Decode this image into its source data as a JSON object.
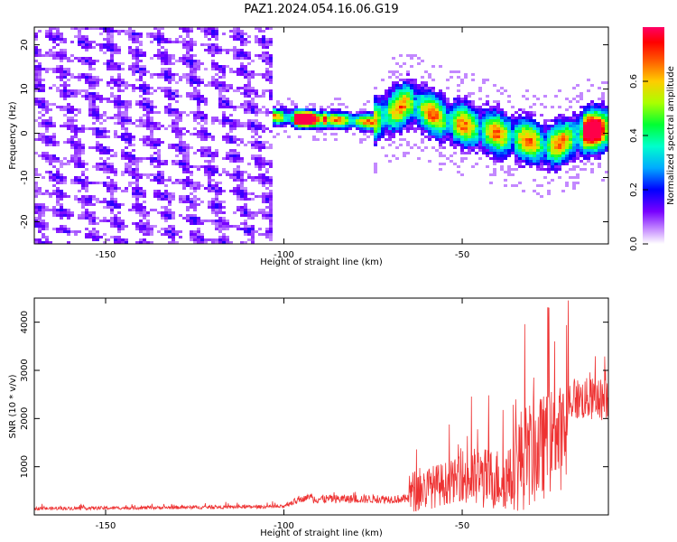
{
  "figure": {
    "title": "PAZ1.2024.054.16.06.G19"
  },
  "chart_data": [
    {
      "type": "heatmap",
      "xlabel": "Height of straight line (km)",
      "ylabel": "Frequency (Hz)",
      "xlim": [
        -170,
        -9
      ],
      "ylim": [
        -25,
        24
      ],
      "x_ticks": [
        -150,
        -100,
        -50
      ],
      "y_ticks": [
        -20,
        -10,
        0,
        10,
        20
      ],
      "colorbar": {
        "label": "Normalized spectral amplitude",
        "range": [
          0,
          0.8
        ],
        "ticks": [
          0.0,
          0.2,
          0.4,
          0.6
        ],
        "colormap": "hsv"
      },
      "ridge": {
        "description_points_x": [
          -105,
          -95,
          -85,
          -75,
          -65,
          -55,
          -45,
          -35,
          -25,
          -15,
          -9
        ],
        "description_points_y": [
          4,
          3.2,
          3,
          2.5,
          7,
          3,
          1,
          -1,
          -3,
          0.5,
          1
        ]
      }
    },
    {
      "type": "line",
      "xlabel": "Height of straight line (km)",
      "ylabel": "SNR (10 * v/v)",
      "xlim": [
        -170,
        -9
      ],
      "ylim": [
        0,
        4500
      ],
      "x_ticks": [
        -150,
        -100,
        -50
      ],
      "y_ticks": [
        1000,
        2000,
        3000,
        4000
      ],
      "series": [
        {
          "color": "#ee3333"
        }
      ]
    }
  ]
}
